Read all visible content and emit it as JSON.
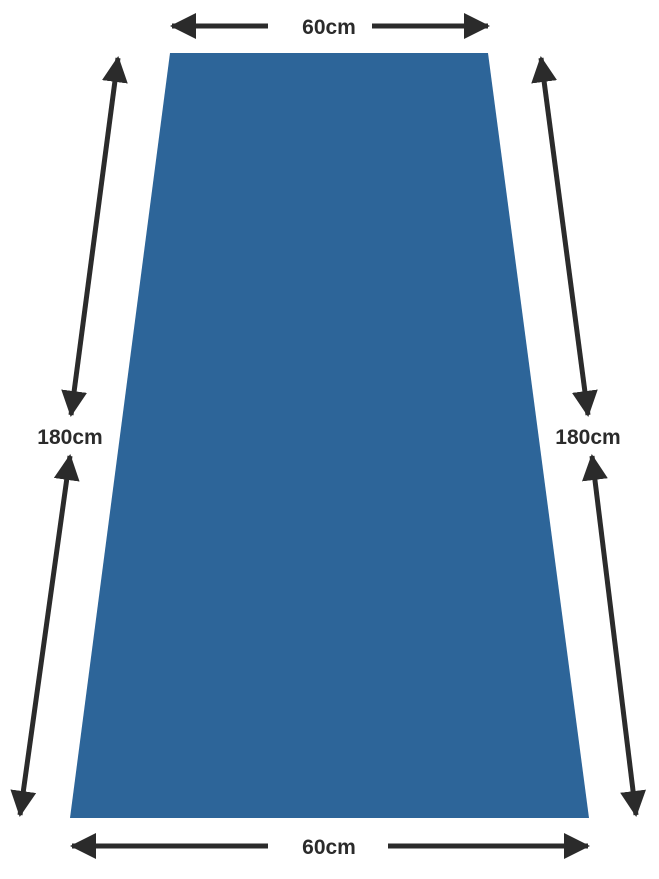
{
  "colors": {
    "shape_fill": "#2d6599",
    "arrow": "#2b2b2b",
    "text": "#2b2b2b",
    "background": "#ffffff"
  },
  "dimensions": {
    "top_width": "60cm",
    "bottom_width": "60cm",
    "left_length": "180cm",
    "right_length": "180cm"
  }
}
